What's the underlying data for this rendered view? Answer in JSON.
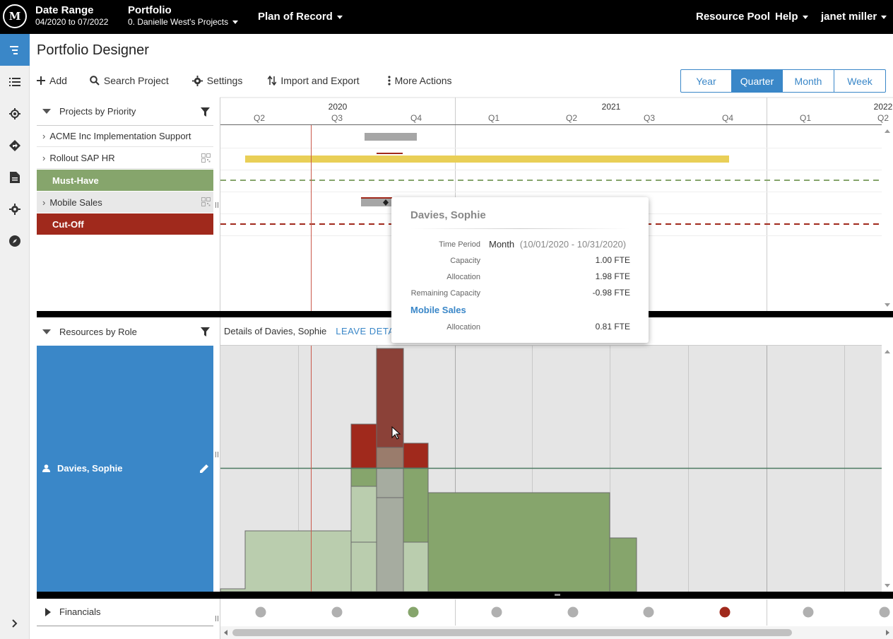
{
  "topbar": {
    "logo": "M",
    "date_range_label": "Date Range",
    "date_range_value": "04/2020 to 07/2022",
    "portfolio_label": "Portfolio",
    "portfolio_value": "0. Danielle West's Projects",
    "plan": "Plan of Record",
    "resource_pool": "Resource Pool",
    "help": "Help",
    "user": "janet miller"
  },
  "sidebar": {
    "items": [
      {
        "icon": "timeline-icon",
        "active": true
      },
      {
        "icon": "list-icon"
      },
      {
        "icon": "target-icon"
      },
      {
        "icon": "directions-icon"
      },
      {
        "icon": "document-icon"
      },
      {
        "icon": "gear-icon"
      },
      {
        "icon": "compass-icon"
      }
    ],
    "expand_icon": "chevron-right-icon"
  },
  "page": {
    "title": "Portfolio Designer"
  },
  "toolbar": {
    "add": "Add",
    "search": "Search Project",
    "settings": "Settings",
    "import_export": "Import and Export",
    "more": "More Actions"
  },
  "timescale": {
    "options": [
      "Year",
      "Quarter",
      "Month",
      "Week"
    ],
    "selected": "Quarter"
  },
  "timeline": {
    "years": [
      "2020",
      "2021",
      "2022"
    ],
    "quarters": [
      "Q2",
      "Q3",
      "Q4",
      "Q1",
      "Q2",
      "Q3",
      "Q4",
      "Q1",
      "Q2"
    ]
  },
  "projects_panel": {
    "title": "Projects by Priority",
    "rows": [
      {
        "label": "ACME Inc Implementation Support",
        "type": "project"
      },
      {
        "label": "Rollout SAP HR",
        "type": "project"
      },
      {
        "label": "Must-Have",
        "type": "band",
        "color": "#86a56c"
      },
      {
        "label": "Mobile Sales",
        "type": "project"
      },
      {
        "label": "Cut-Off",
        "type": "band",
        "color": "#a0291c"
      }
    ]
  },
  "resources_panel": {
    "title": "Resources by Role",
    "details_text": "Details of Davies, Sophie",
    "leave_link": "LEAVE DETAILS",
    "resource": "Davies, Sophie",
    "resource_color": "#3a87c8"
  },
  "financials": {
    "title": "Financials",
    "dot_colors": [
      "#b0b0b0",
      "#b0b0b0",
      "#86a56c",
      "#b0b0b0",
      "#b0b0b0",
      "#b0b0b0",
      "#a0291c",
      "#b0b0b0",
      "#b0b0b0"
    ]
  },
  "tooltip": {
    "name": "Davies, Sophie",
    "time_period_label": "Time Period",
    "time_period_value": "Month",
    "time_period_range": "(10/01/2020 - 10/31/2020)",
    "capacity_label": "Capacity",
    "capacity_value": "1.00 FTE",
    "allocation_label": "Allocation",
    "allocation_value": "1.98 FTE",
    "remaining_label": "Remaining Capacity",
    "remaining_value": "-0.98 FTE",
    "project": "Mobile Sales",
    "project_alloc_label": "Allocation",
    "project_alloc_value": "0.81 FTE"
  }
}
